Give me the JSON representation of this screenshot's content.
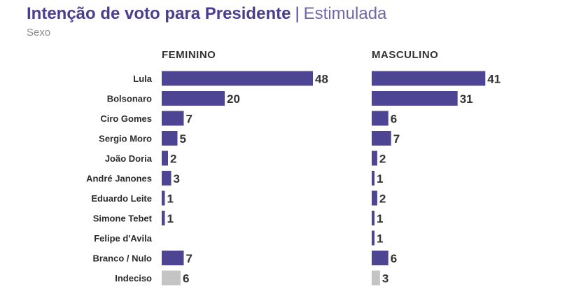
{
  "header": {
    "title": "Intenção de voto para Presidente",
    "separator": "|",
    "title_suffix": "Estimulada",
    "subtitle": "Sexo"
  },
  "colors": {
    "bar": "#4e4494",
    "bar_muted": "#c4c4c4",
    "title": "#4a3f8f"
  },
  "chart_data": {
    "type": "bar",
    "orientation": "horizontal",
    "categories": [
      "Lula",
      "Bolsonaro",
      "Ciro Gomes",
      "Sergio Moro",
      "João Doria",
      "André Janones",
      "Eduardo Leite",
      "Simone Tebet",
      "Felipe d'Avila",
      "Branco / Nulo",
      "Indeciso"
    ],
    "muted_categories": [
      "Indeciso"
    ],
    "series": [
      {
        "name": "FEMININO",
        "values": [
          48,
          20,
          7,
          5,
          2,
          3,
          1,
          1,
          0,
          7,
          6
        ],
        "labels": [
          "48",
          "20",
          "7",
          "5",
          "2",
          "3",
          "1",
          "1",
          "",
          "7",
          "6"
        ]
      },
      {
        "name": "MASCULINO",
        "values": [
          41,
          31,
          6,
          7,
          2,
          1,
          2,
          1,
          1,
          6,
          3
        ],
        "labels": [
          "41",
          "31",
          "6",
          "7",
          "2",
          "1",
          "2",
          "1",
          "1",
          "6",
          "3"
        ]
      }
    ],
    "xlim": [
      0,
      48
    ],
    "grid": false,
    "legend": "none"
  }
}
